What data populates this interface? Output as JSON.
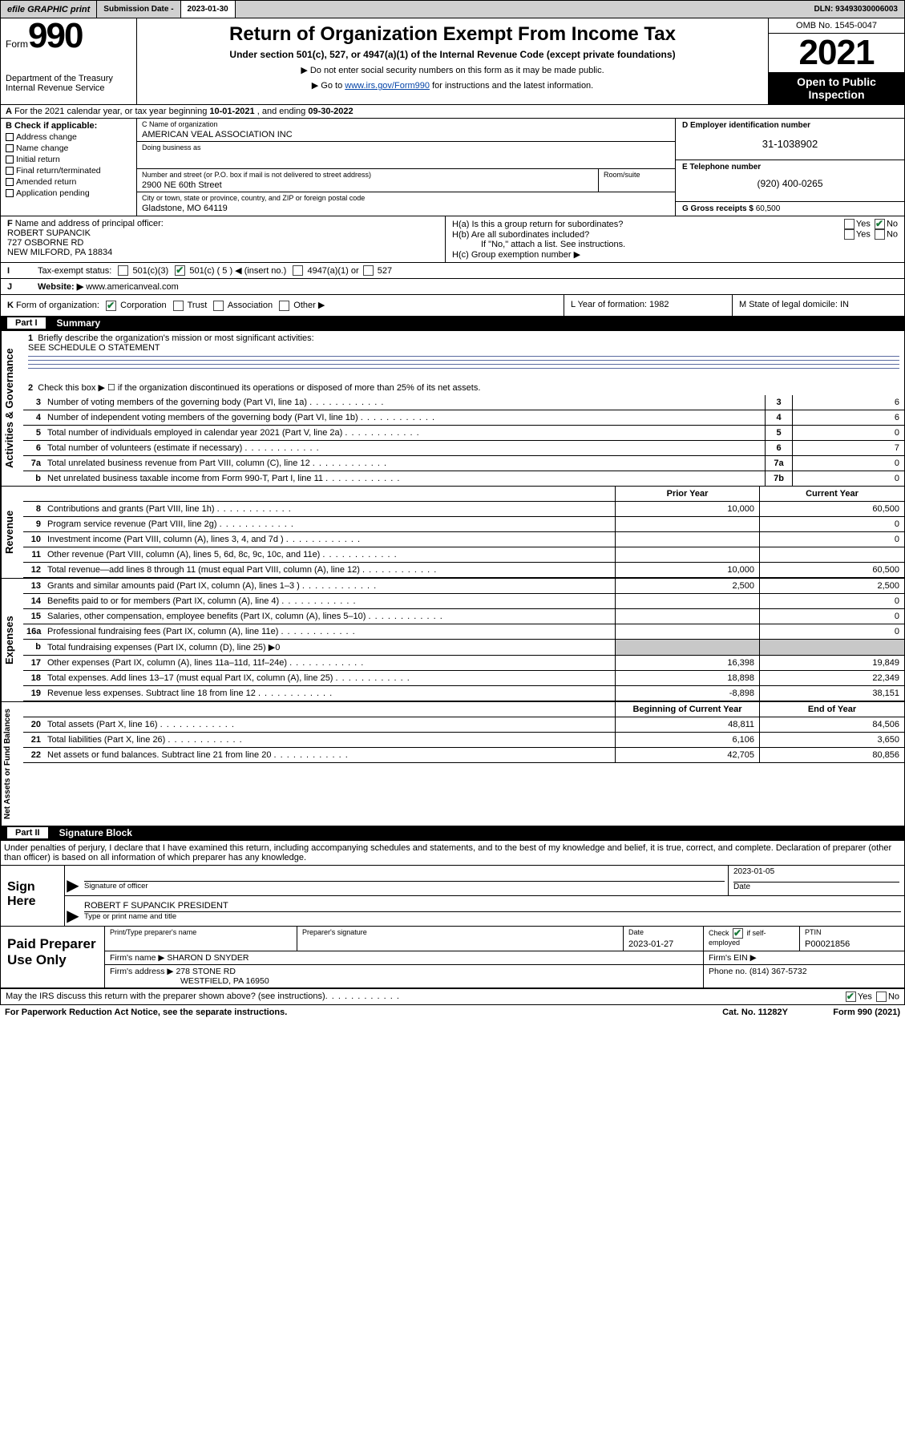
{
  "toolbar": {
    "efile": "efile GRAPHIC print",
    "sub_label": "Submission Date - ",
    "sub_date": "2023-01-30",
    "dln": "DLN: 93493030006003"
  },
  "header": {
    "form_word": "Form",
    "form_num": "990",
    "dept": "Department of the Treasury",
    "irs": "Internal Revenue Service",
    "title": "Return of Organization Exempt From Income Tax",
    "sub": "Under section 501(c), 527, or 4947(a)(1) of the Internal Revenue Code (except private foundations)",
    "note1": "▶ Do not enter social security numbers on this form as it may be made public.",
    "note2_pre": "▶ Go to ",
    "note2_link": "www.irs.gov/Form990",
    "note2_post": " for instructions and the latest information.",
    "omb": "OMB No. 1545-0047",
    "year": "2021",
    "open": "Open to Public Inspection"
  },
  "rowA": {
    "label": "A",
    "text_pre": "For the 2021 calendar year, or tax year beginning ",
    "beg": "10-01-2021",
    "mid": " , and ending ",
    "end": "09-30-2022"
  },
  "boxB": {
    "heading": "B Check if applicable:",
    "items": [
      "Address change",
      "Name change",
      "Initial return",
      "Final return/terminated",
      "Amended return",
      "Application pending"
    ]
  },
  "boxC": {
    "name_label": "C Name of organization",
    "name": "AMERICAN VEAL ASSOCIATION INC",
    "dba_label": "Doing business as",
    "dba": "",
    "street_label": "Number and street (or P.O. box if mail is not delivered to street address)",
    "street": "2900 NE 60th Street",
    "room_label": "Room/suite",
    "room": "",
    "city_label": "City or town, state or province, country, and ZIP or foreign postal code",
    "city": "Gladstone, MO  64119"
  },
  "boxD": {
    "ein_label": "D Employer identification number",
    "ein": "31-1038902",
    "phone_label": "E Telephone number",
    "phone": "(920) 400-0265",
    "gross_label": "G Gross receipts $",
    "gross": "60,500"
  },
  "boxF": {
    "label": "F",
    "heading": "Name and address of principal officer:",
    "l1": "ROBERT SUPANCIK",
    "l2": "727 OSBORNE RD",
    "l3": "NEW MILFORD, PA  18834"
  },
  "boxH": {
    "ha": "H(a)  Is this a group return for subordinates?",
    "hb": "H(b)  Are all subordinates included?",
    "hb_note": "If \"No,\" attach a list. See instructions.",
    "hc": "H(c)  Group exemption number ▶"
  },
  "rowI": {
    "label": "I",
    "heading": "Tax-exempt status:",
    "o1": "501(c)(3)",
    "o2": "501(c) ( 5 ) ◀ (insert no.)",
    "o3": "4947(a)(1) or",
    "o4": "527"
  },
  "rowJ": {
    "label": "J",
    "heading": "Website: ▶",
    "val": "www.americanveal.com"
  },
  "rowK": {
    "label": "K",
    "heading": "Form of organization:",
    "opts": [
      "Corporation",
      "Trust",
      "Association",
      "Other ▶"
    ],
    "L": "L Year of formation: 1982",
    "M": "M State of legal domicile: IN"
  },
  "part1": {
    "hdr": "Part I",
    "title": "Summary",
    "tabs": {
      "gov": "Activities & Governance",
      "rev": "Revenue",
      "exp": "Expenses",
      "net": "Net Assets or Fund Balances"
    },
    "l1": "Briefly describe the organization's mission or most significant activities:",
    "l1v": "SEE SCHEDULE O STATEMENT",
    "l2": "Check this box ▶ ☐  if the organization discontinued its operations or disposed of more than 25% of its net assets.",
    "rows_gov": [
      {
        "n": "3",
        "t": "Number of voting members of the governing body (Part VI, line 1a)",
        "box": "3",
        "v": "6"
      },
      {
        "n": "4",
        "t": "Number of independent voting members of the governing body (Part VI, line 1b)",
        "box": "4",
        "v": "6"
      },
      {
        "n": "5",
        "t": "Total number of individuals employed in calendar year 2021 (Part V, line 2a)",
        "box": "5",
        "v": "0"
      },
      {
        "n": "6",
        "t": "Total number of volunteers (estimate if necessary)",
        "box": "6",
        "v": "7"
      },
      {
        "n": "7a",
        "t": "Total unrelated business revenue from Part VIII, column (C), line 12",
        "box": "7a",
        "v": "0"
      },
      {
        "n": "b",
        "t": "Net unrelated business taxable income from Form 990-T, Part I, line 11",
        "box": "7b",
        "v": "0"
      }
    ],
    "col_prior": "Prior Year",
    "col_curr": "Current Year",
    "col_boy": "Beginning of Current Year",
    "col_eoy": "End of Year",
    "rows_rev": [
      {
        "n": "8",
        "t": "Contributions and grants (Part VIII, line 1h)",
        "p": "10,000",
        "c": "60,500"
      },
      {
        "n": "9",
        "t": "Program service revenue (Part VIII, line 2g)",
        "p": "",
        "c": "0"
      },
      {
        "n": "10",
        "t": "Investment income (Part VIII, column (A), lines 3, 4, and 7d )",
        "p": "",
        "c": "0"
      },
      {
        "n": "11",
        "t": "Other revenue (Part VIII, column (A), lines 5, 6d, 8c, 9c, 10c, and 11e)",
        "p": "",
        "c": ""
      },
      {
        "n": "12",
        "t": "Total revenue—add lines 8 through 11 (must equal Part VIII, column (A), line 12)",
        "p": "10,000",
        "c": "60,500"
      }
    ],
    "rows_exp": [
      {
        "n": "13",
        "t": "Grants and similar amounts paid (Part IX, column (A), lines 1–3 )",
        "p": "2,500",
        "c": "2,500"
      },
      {
        "n": "14",
        "t": "Benefits paid to or for members (Part IX, column (A), line 4)",
        "p": "",
        "c": "0"
      },
      {
        "n": "15",
        "t": "Salaries, other compensation, employee benefits (Part IX, column (A), lines 5–10)",
        "p": "",
        "c": "0"
      },
      {
        "n": "16a",
        "t": "Professional fundraising fees (Part IX, column (A), line 11e)",
        "p": "",
        "c": "0"
      },
      {
        "n": "b",
        "t": "Total fundraising expenses (Part IX, column (D), line 25) ▶0",
        "gray": true
      },
      {
        "n": "17",
        "t": "Other expenses (Part IX, column (A), lines 11a–11d, 11f–24e)",
        "p": "16,398",
        "c": "19,849"
      },
      {
        "n": "18",
        "t": "Total expenses. Add lines 13–17 (must equal Part IX, column (A), line 25)",
        "p": "18,898",
        "c": "22,349"
      },
      {
        "n": "19",
        "t": "Revenue less expenses. Subtract line 18 from line 12",
        "p": "-8,898",
        "c": "38,151"
      }
    ],
    "rows_net": [
      {
        "n": "20",
        "t": "Total assets (Part X, line 16)",
        "p": "48,811",
        "c": "84,506"
      },
      {
        "n": "21",
        "t": "Total liabilities (Part X, line 26)",
        "p": "6,106",
        "c": "3,650"
      },
      {
        "n": "22",
        "t": "Net assets or fund balances. Subtract line 21 from line 20",
        "p": "42,705",
        "c": "80,856"
      }
    ]
  },
  "part2": {
    "hdr": "Part II",
    "title": "Signature Block",
    "penalty": "Under penalties of perjury, I declare that I have examined this return, including accompanying schedules and statements, and to the best of my knowledge and belief, it is true, correct, and complete. Declaration of preparer (other than officer) is based on all information of which preparer has any knowledge.",
    "sign_here": "Sign Here",
    "sig_of_officer": "Signature of officer",
    "date_lbl": "Date",
    "sig_date": "2023-01-05",
    "name_title": "ROBERT F SUPANCIK  PRESIDENT",
    "type_lbl": "Type or print name and title",
    "paid": "Paid Preparer Use Only",
    "pt_name_lbl": "Print/Type preparer's name",
    "pt_name": "",
    "pt_sig_lbl": "Preparer's signature",
    "pt_date_lbl": "Date",
    "pt_date": "2023-01-27",
    "pt_self": "Check ☐ if self-employed",
    "ptin_lbl": "PTIN",
    "ptin": "P00021856",
    "firm_name_lbl": "Firm's name    ▶",
    "firm_name": "SHARON D SNYDER",
    "firm_ein_lbl": "Firm's EIN ▶",
    "firm_ein": "",
    "firm_addr_lbl": "Firm's address ▶",
    "firm_addr1": "278 STONE RD",
    "firm_addr2": "WESTFIELD, PA  16950",
    "firm_phone_lbl": "Phone no.",
    "firm_phone": "(814) 367-5732"
  },
  "footer": {
    "discuss": "May the IRS discuss this return with the preparer shown above? (see instructions)",
    "pra": "For Paperwork Reduction Act Notice, see the separate instructions.",
    "cat": "Cat. No. 11282Y",
    "form": "Form 990 (2021)"
  }
}
